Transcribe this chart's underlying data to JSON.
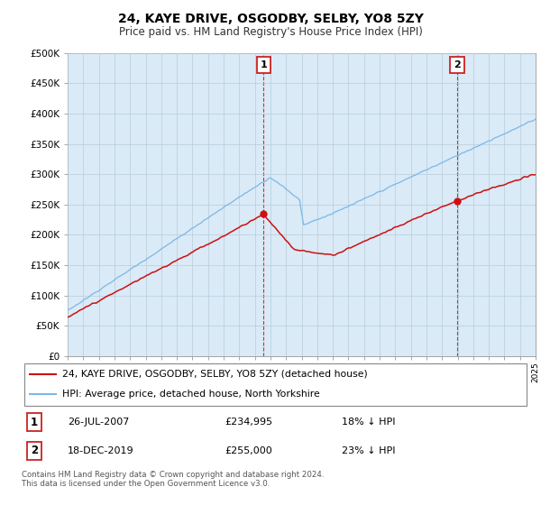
{
  "title": "24, KAYE DRIVE, OSGODBY, SELBY, YO8 5ZY",
  "subtitle": "Price paid vs. HM Land Registry's House Price Index (HPI)",
  "ylabel_ticks": [
    "£0",
    "£50K",
    "£100K",
    "£150K",
    "£200K",
    "£250K",
    "£300K",
    "£350K",
    "£400K",
    "£450K",
    "£500K"
  ],
  "ytick_values": [
    0,
    50000,
    100000,
    150000,
    200000,
    250000,
    300000,
    350000,
    400000,
    450000,
    500000
  ],
  "ylim": [
    0,
    500000
  ],
  "x_start_year": 1995,
  "x_end_year": 2025,
  "hpi_color": "#7ab8e8",
  "hpi_fill_color": "#daeaf7",
  "price_color": "#cc1111",
  "dashed_line_color": "#cc1111",
  "transaction1": {
    "date": "26-JUL-2007",
    "price": 234995,
    "label": "1",
    "pct": "18% ↓ HPI"
  },
  "transaction2": {
    "date": "18-DEC-2019",
    "price": 255000,
    "label": "2",
    "pct": "23% ↓ HPI"
  },
  "transaction1_x": 2007.56,
  "transaction2_x": 2019.96,
  "legend_line1": "24, KAYE DRIVE, OSGODBY, SELBY, YO8 5ZY (detached house)",
  "legend_line2": "HPI: Average price, detached house, North Yorkshire",
  "footer": "Contains HM Land Registry data © Crown copyright and database right 2024.\nThis data is licensed under the Open Government Licence v3.0.",
  "background_color": "#ffffff",
  "grid_color": "#c8d8e8"
}
